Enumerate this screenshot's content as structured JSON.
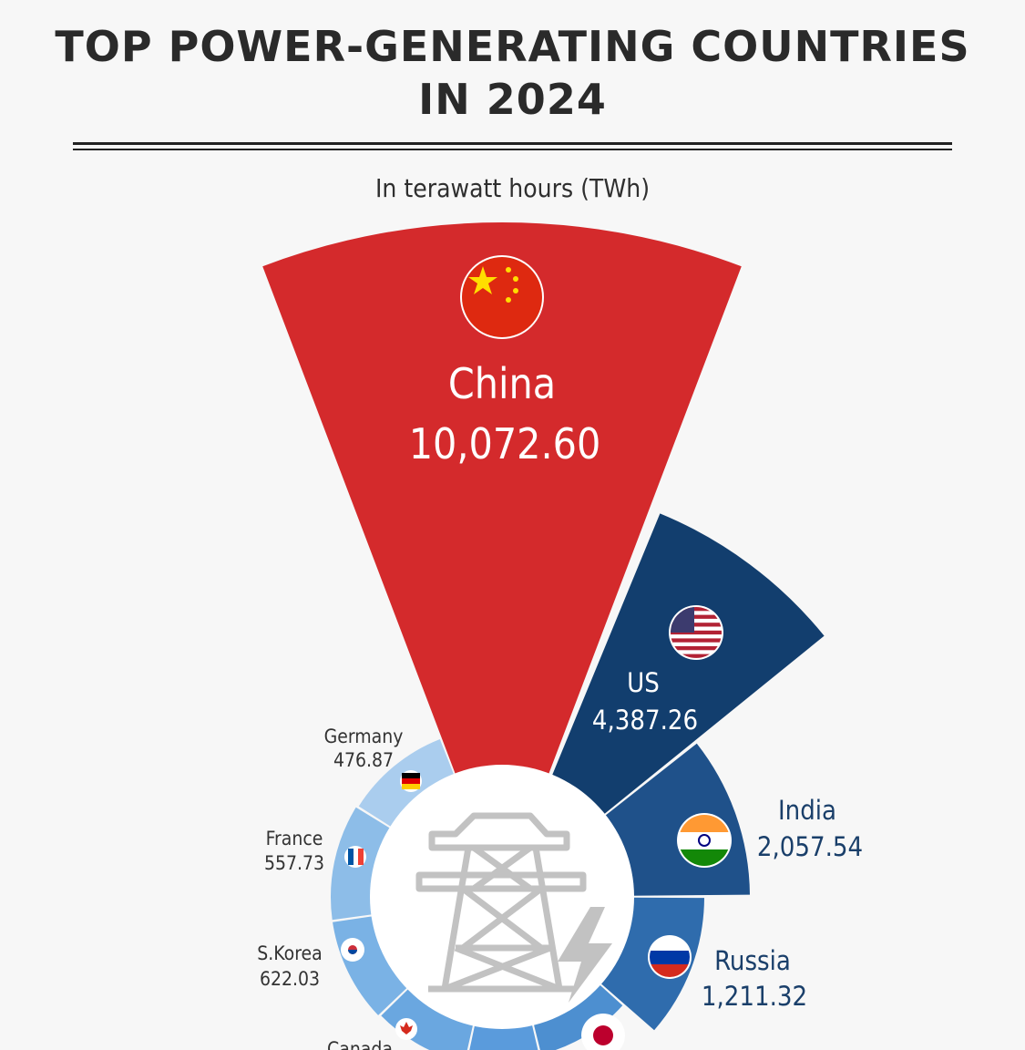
{
  "title_line1": "TOP POWER-GENERATING COUNTRIES",
  "title_line2": "IN 2024",
  "subtitle": "In terawatt hours (TWh)",
  "chart_data": {
    "type": "radial-bar",
    "unit": "TWh",
    "values_partially_visible": true,
    "series": [
      {
        "country": "China",
        "value_label": "10,072.60",
        "value": 10072.6,
        "color": "#d42a2c",
        "flag": "china-flag-icon"
      },
      {
        "country": "US",
        "value_label": "4,387.26",
        "value": 4387.26,
        "color": "#123e6e",
        "flag": "us-flag-icon"
      },
      {
        "country": "India",
        "value_label": "2,057.54",
        "value": 2057.54,
        "color": "#1f518a",
        "flag": "india-flag-icon"
      },
      {
        "country": "Russia",
        "value_label": "1,211.32",
        "value": 1211.32,
        "color": "#2f6cad",
        "flag": "russia-flag-icon"
      },
      {
        "country": "",
        "value_label": "",
        "value": null,
        "color": "#4d8fd0",
        "flag": "japan-flag-icon"
      },
      {
        "country": "",
        "value_label": "",
        "value": null,
        "color": "#5a9bdc",
        "flag": ""
      },
      {
        "country": "Canada",
        "value_label": "",
        "value": null,
        "color": "#6aa7e0",
        "flag": "canada-flag-icon"
      },
      {
        "country": "S.Korea",
        "value_label": "622.03",
        "value": 622.03,
        "color": "#7ab2e5",
        "flag": "south-korea-flag-icon"
      },
      {
        "country": "France",
        "value_label": "557.73",
        "value": 557.73,
        "color": "#8dbde8",
        "flag": "france-flag-icon"
      },
      {
        "country": "Germany",
        "value_label": "476.87",
        "value": 476.87,
        "color": "#aacdee",
        "flag": "germany-flag-icon"
      }
    ]
  }
}
